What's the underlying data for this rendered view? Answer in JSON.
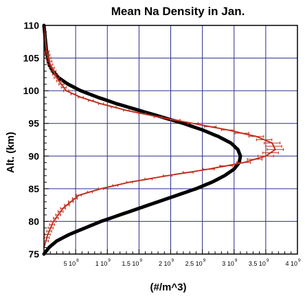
{
  "chart_data": {
    "type": "line",
    "title": "Mean Na Density in Jan.",
    "xlabel": "(#/m^3)",
    "ylabel": "Alt. (km)",
    "xlim": [
      0,
      4000000000
    ],
    "ylim": [
      75,
      110
    ],
    "grid": true,
    "y_ticks": [
      "75",
      "80",
      "85",
      "90",
      "95",
      "100",
      "105",
      "110"
    ],
    "x_ticks": [
      {
        "value": 500000000,
        "mantissa": "5 10",
        "exp": "8"
      },
      {
        "value": 1000000000,
        "mantissa": "1 10",
        "exp": "9"
      },
      {
        "value": 1500000000,
        "mantissa": "1.5 10",
        "exp": "9"
      },
      {
        "value": 2000000000,
        "mantissa": "2 10",
        "exp": "9"
      },
      {
        "value": 2500000000,
        "mantissa": "2.5 10",
        "exp": "9"
      },
      {
        "value": 3000000000,
        "mantissa": "3 10",
        "exp": "9"
      },
      {
        "value": 3500000000,
        "mantissa": "3.5 10",
        "exp": "9"
      },
      {
        "value": 4000000000,
        "mantissa": "4 10",
        "exp": "9"
      }
    ],
    "series": [
      {
        "color": "#000000",
        "style": "thick-line",
        "x": [
          0,
          80000000,
          200000000,
          400000000,
          650000000,
          900000000,
          1200000000,
          1500000000,
          1800000000,
          2100000000,
          2400000000,
          2650000000,
          2850000000,
          3000000000,
          3080000000,
          3100000000,
          3060000000,
          2950000000,
          2750000000,
          2500000000,
          2200000000,
          1850000000,
          1500000000,
          1150000000,
          850000000,
          580000000,
          380000000,
          230000000,
          140000000,
          80000000,
          40000000,
          0
        ],
        "y": [
          75,
          76,
          77,
          78,
          79,
          80,
          81,
          82,
          83,
          84,
          85,
          86,
          87,
          88,
          89,
          90,
          91,
          92,
          93,
          94,
          95,
          96,
          97,
          98,
          99,
          100,
          101,
          102,
          103,
          104,
          106,
          110
        ]
      },
      {
        "color": "#c0301e",
        "style": "line-with-error-bars",
        "x": [
          0,
          60000000,
          150000000,
          300000000,
          550000000,
          900000000,
          1350000000,
          1950000000,
          2600000000,
          3150000000,
          3500000000,
          3650000000,
          3600000000,
          3350000000,
          2900000000,
          2350000000,
          1800000000,
          1300000000,
          900000000,
          580000000,
          350000000,
          200000000,
          100000000,
          40000000,
          0
        ],
        "y": [
          76,
          78,
          80,
          82,
          84,
          85,
          86,
          87,
          88,
          89,
          90,
          91,
          92,
          93,
          94,
          95,
          96,
          97,
          98,
          99,
          100,
          102,
          104,
          106,
          110
        ]
      }
    ]
  }
}
